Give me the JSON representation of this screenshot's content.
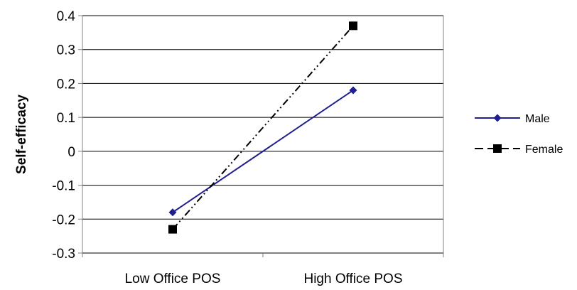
{
  "chart_data": {
    "type": "line",
    "categories": [
      "Low Office POS",
      "High Office POS"
    ],
    "ylabel": "Self-efficacy",
    "ylim": [
      -0.3,
      0.4
    ],
    "yticks": [
      "0.4",
      "0.3",
      "0.2",
      "0.1",
      "0",
      "-0.1",
      "-0.2",
      "-0.3"
    ],
    "grid": true,
    "legend_position": "right",
    "series": [
      {
        "name": "Male",
        "values": [
          -0.18,
          0.18
        ],
        "color": "#1f1f8f",
        "marker": "diamond",
        "line_style": "solid"
      },
      {
        "name": "Female",
        "values": [
          -0.23,
          0.37
        ],
        "color": "#000000",
        "marker": "square",
        "line_style": "dash-dot-dot"
      }
    ]
  }
}
